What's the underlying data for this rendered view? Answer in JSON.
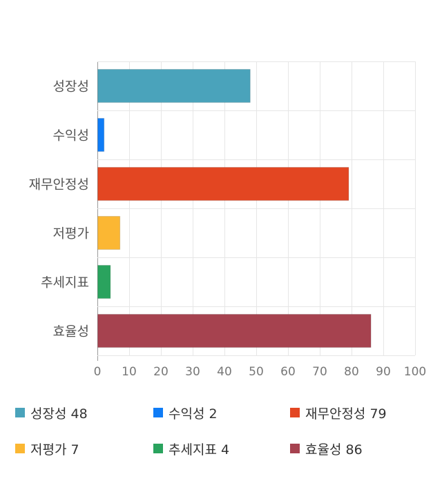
{
  "chart_data": {
    "type": "bar",
    "orientation": "horizontal",
    "categories": [
      "성장성",
      "수익성",
      "재무안정성",
      "저평가",
      "추세지표",
      "효율성"
    ],
    "values": [
      48,
      2,
      79,
      7,
      4,
      86
    ],
    "colors": [
      "#4aa3bb",
      "#0f7cf6",
      "#e34622",
      "#fbb733",
      "#2aa35e",
      "#a6424f"
    ],
    "xlim": [
      0,
      100
    ],
    "xticks": [
      "0",
      "10",
      "20",
      "30",
      "40",
      "50",
      "60",
      "70",
      "80",
      "90",
      "100"
    ],
    "grid": true,
    "legend_position": "bottom"
  },
  "legend": [
    {
      "label": "성장성 48"
    },
    {
      "label": "수익성 2"
    },
    {
      "label": "재무안정성 79"
    },
    {
      "label": "저평가 7"
    },
    {
      "label": "추세지표 4"
    },
    {
      "label": "효율성 86"
    }
  ]
}
